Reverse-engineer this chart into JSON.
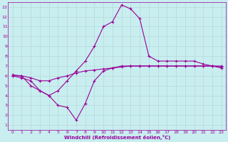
{
  "xlabel": "Windchill (Refroidissement éolien,°C)",
  "background_color": "#c8eef0",
  "line_color": "#990099",
  "grid_color": "#b8d8da",
  "xlim": [
    -0.5,
    23.5
  ],
  "ylim": [
    0.5,
    13.5
  ],
  "xticks": [
    0,
    1,
    2,
    3,
    4,
    5,
    6,
    7,
    8,
    9,
    10,
    11,
    12,
    13,
    14,
    15,
    16,
    17,
    18,
    19,
    20,
    21,
    22,
    23
  ],
  "yticks": [
    1,
    2,
    3,
    4,
    5,
    6,
    7,
    8,
    9,
    10,
    11,
    12,
    13
  ],
  "line1_x": [
    0,
    1,
    2,
    3,
    4,
    5,
    6,
    7,
    8,
    9,
    10,
    11,
    12,
    13,
    14,
    15,
    16,
    17,
    18,
    19,
    20,
    21,
    22,
    23
  ],
  "line1_y": [
    6.0,
    6.0,
    5.0,
    4.5,
    4.0,
    4.5,
    5.5,
    6.5,
    7.5,
    9.0,
    11.0,
    11.5,
    13.2,
    12.8,
    11.8,
    8.0,
    7.5,
    7.5,
    7.5,
    7.5,
    7.5,
    7.2,
    7.0,
    7.0
  ],
  "line2_x": [
    0,
    1,
    2,
    3,
    4,
    5,
    6,
    7,
    8,
    9,
    10,
    11,
    12,
    13,
    14,
    15,
    16,
    17,
    18,
    19,
    20,
    21,
    22,
    23
  ],
  "line2_y": [
    6.1,
    6.0,
    5.8,
    5.5,
    5.5,
    5.8,
    6.0,
    6.3,
    6.5,
    6.6,
    6.7,
    6.8,
    6.9,
    7.0,
    7.0,
    7.0,
    7.0,
    7.0,
    7.0,
    7.0,
    7.0,
    7.0,
    7.0,
    6.8
  ],
  "line3_x": [
    0,
    1,
    2,
    3,
    4,
    5,
    6,
    7,
    8,
    9,
    10,
    11,
    12,
    13,
    14,
    15,
    16,
    17,
    18,
    19,
    20,
    21,
    22,
    23
  ],
  "line3_y": [
    6.0,
    5.8,
    5.5,
    4.5,
    4.0,
    3.0,
    2.8,
    1.5,
    3.2,
    5.5,
    6.5,
    6.8,
    7.0,
    7.0,
    7.0,
    7.0,
    7.0,
    7.0,
    7.0,
    7.0,
    7.0,
    7.0,
    7.0,
    6.9
  ]
}
